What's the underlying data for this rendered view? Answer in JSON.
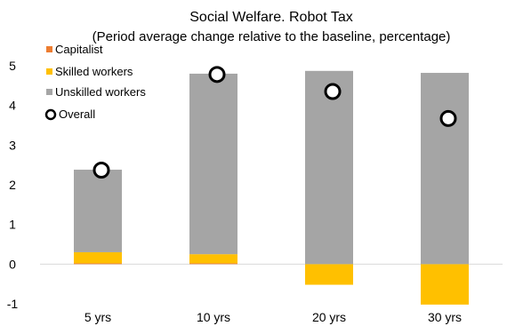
{
  "chart_data": {
    "type": "bar",
    "title": "Social Welfare. Robot Tax",
    "subtitle": "(Period average change relative to the baseline, percentage)",
    "categories": [
      "5 yrs",
      "10 yrs",
      "20 yrs",
      "30 yrs"
    ],
    "stacked": true,
    "series": [
      {
        "name": "Capitalist",
        "values": [
          0.02,
          0.02,
          0.0,
          0.0
        ],
        "color": "#ED7D31"
      },
      {
        "name": "Skilled workers",
        "values": [
          0.28,
          0.23,
          -0.52,
          -1.02
        ],
        "color": "#FFC000"
      },
      {
        "name": "Unskilled workers",
        "values": [
          2.08,
          4.55,
          4.87,
          4.82
        ],
        "color": "#A5A5A5"
      }
    ],
    "overall": {
      "name": "Overall",
      "values": [
        2.37,
        4.78,
        4.35,
        3.67
      ]
    },
    "ylim": [
      -1,
      5
    ],
    "yticks": [
      -1,
      0,
      1,
      2,
      3,
      4,
      5
    ],
    "xlabel": "",
    "ylabel": "",
    "grid": false,
    "legend_position": "top-left"
  }
}
